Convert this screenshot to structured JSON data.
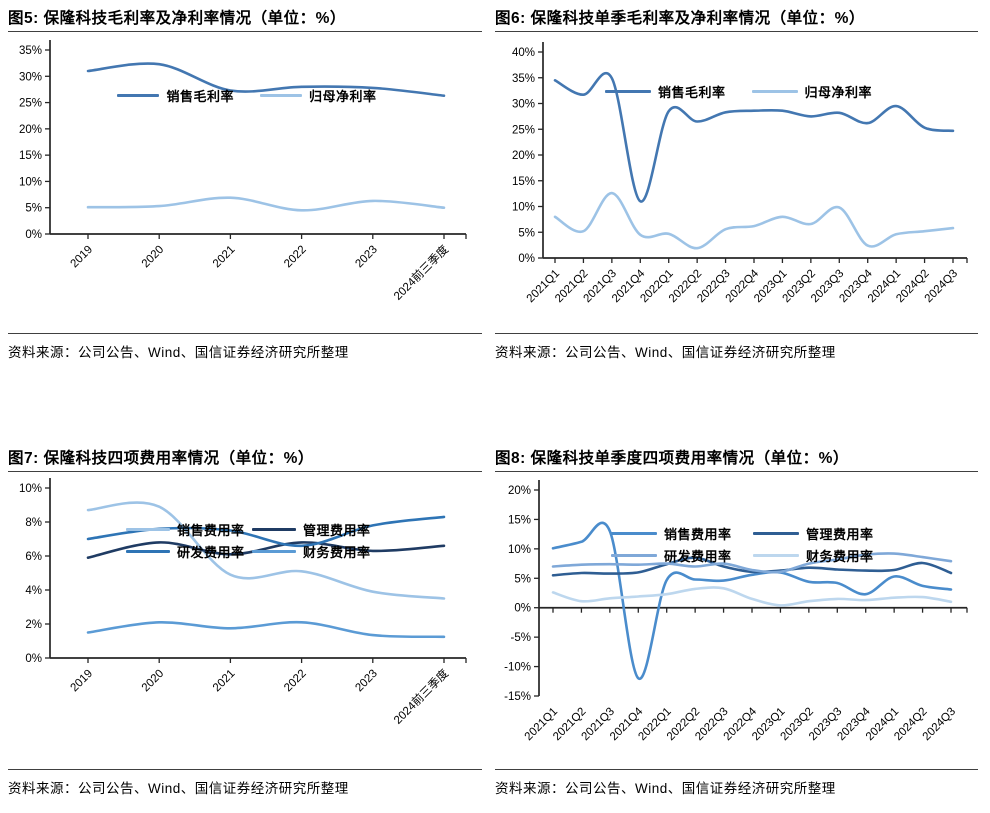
{
  "chart_data": [
    {
      "type": "line",
      "title": "图5: 保隆科技毛利率及净利率情况（单位：%）",
      "source": "资料来源：公司公告、Wind、国信证券经济研究所整理",
      "categories": [
        "2019",
        "2020",
        "2021",
        "2022",
        "2023",
        "2024前三季度"
      ],
      "yticks": [
        "35%",
        "30%",
        "25%",
        "20%",
        "15%",
        "10%",
        "5%",
        "0%"
      ],
      "ylim": [
        0,
        35
      ],
      "grid": false,
      "legend_position": "top-center",
      "series": [
        {
          "name": "销售毛利率",
          "color": "#4377B1",
          "values": [
            31.0,
            32.3,
            27.3,
            28.0,
            27.8,
            26.3
          ]
        },
        {
          "name": "归母净利率",
          "color": "#9DC3E6",
          "values": [
            5.1,
            5.3,
            6.9,
            4.5,
            6.3,
            5.0
          ]
        }
      ]
    },
    {
      "type": "line",
      "title": "图6: 保隆科技单季毛利率及净利率情况（单位：%）",
      "source": "资料来源：公司公告、Wind、国信证券经济研究所整理",
      "categories": [
        "2021Q1",
        "2021Q2",
        "2021Q3",
        "2021Q4",
        "2022Q1",
        "2022Q2",
        "2022Q3",
        "2022Q4",
        "2023Q1",
        "2023Q2",
        "2023Q3",
        "2023Q4",
        "2024Q1",
        "2024Q2",
        "2024Q3"
      ],
      "yticks": [
        "40%",
        "35%",
        "30%",
        "25%",
        "20%",
        "15%",
        "10%",
        "5%",
        "0%"
      ],
      "ylim": [
        0,
        40
      ],
      "grid": false,
      "legend_position": "top-center",
      "series": [
        {
          "name": "销售毛利率",
          "color": "#4377B1",
          "values": [
            34.5,
            31.7,
            34.9,
            11.0,
            28.5,
            26.5,
            28.3,
            28.6,
            28.6,
            27.5,
            28.2,
            26.2,
            29.5,
            25.3,
            24.7
          ]
        },
        {
          "name": "归母净利率",
          "color": "#9DC3E6",
          "values": [
            8.0,
            5.2,
            12.6,
            4.5,
            4.7,
            1.9,
            5.6,
            6.2,
            8.0,
            6.6,
            9.8,
            2.4,
            4.6,
            5.2,
            5.8
          ]
        }
      ]
    },
    {
      "type": "line",
      "title": "图7: 保隆科技四项费用率情况（单位：%）",
      "source": "资料来源：公司公告、Wind、国信证券经济研究所整理",
      "categories": [
        "2019",
        "2020",
        "2021",
        "2022",
        "2023",
        "2024前三季度"
      ],
      "yticks": [
        "10%",
        "8%",
        "6%",
        "4%",
        "2%",
        "0%"
      ],
      "ylim": [
        0,
        10
      ],
      "grid": false,
      "legend_position": "top-center-2x2",
      "series": [
        {
          "name": "销售费用率",
          "color": "#9DC3E6",
          "values": [
            8.7,
            8.9,
            4.9,
            5.1,
            3.9,
            3.5
          ]
        },
        {
          "name": "管理费用率",
          "color": "#1F3B63",
          "values": [
            5.9,
            6.8,
            6.1,
            6.8,
            6.3,
            6.6
          ]
        },
        {
          "name": "研发费用率",
          "color": "#2E74B5",
          "values": [
            7.0,
            7.6,
            7.5,
            6.6,
            7.8,
            8.3
          ]
        },
        {
          "name": "财务费用率",
          "color": "#5B9BD5",
          "values": [
            1.5,
            2.1,
            1.75,
            2.1,
            1.35,
            1.25
          ]
        }
      ]
    },
    {
      "type": "line",
      "title": "图8: 保隆科技单季度四项费用率情况（单位：%）",
      "source": "资料来源：公司公告、Wind、国信证券经济研究所整理",
      "categories": [
        "2021Q1",
        "2021Q2",
        "2021Q3",
        "2021Q4",
        "2022Q1",
        "2022Q2",
        "2022Q3",
        "2022Q4",
        "2023Q1",
        "2023Q2",
        "2023Q3",
        "2023Q4",
        "2024Q1",
        "2024Q2",
        "2024Q3"
      ],
      "yticks": [
        "20%",
        "15%",
        "10%",
        "5%",
        "0%",
        "-5%",
        "-10%",
        "-15%"
      ],
      "ylim": [
        -15,
        20
      ],
      "grid": false,
      "legend_position": "top-center-2x2",
      "series": [
        {
          "name": "销售费用率",
          "color": "#4A8CCC",
          "values": [
            10.1,
            11.2,
            13.0,
            -12.0,
            4.7,
            4.8,
            4.6,
            5.6,
            6.0,
            4.4,
            4.2,
            2.3,
            5.3,
            3.7,
            3.1
          ]
        },
        {
          "name": "管理费用率",
          "color": "#2F5E93",
          "values": [
            5.5,
            5.9,
            5.8,
            6.0,
            7.4,
            8.5,
            7.0,
            6.1,
            6.3,
            6.8,
            6.5,
            6.3,
            6.4,
            7.6,
            5.9
          ]
        },
        {
          "name": "研发费用率",
          "color": "#7FA8D8",
          "values": [
            7.0,
            7.3,
            7.4,
            7.3,
            7.5,
            7.0,
            7.5,
            6.4,
            6.1,
            7.5,
            8.2,
            9.0,
            9.2,
            8.6,
            7.9
          ]
        },
        {
          "name": "财务费用率",
          "color": "#BDD7EE",
          "values": [
            2.6,
            1.1,
            1.6,
            1.9,
            2.3,
            3.2,
            3.3,
            1.5,
            0.4,
            1.1,
            1.5,
            1.3,
            1.7,
            1.8,
            1.0
          ]
        }
      ]
    }
  ]
}
